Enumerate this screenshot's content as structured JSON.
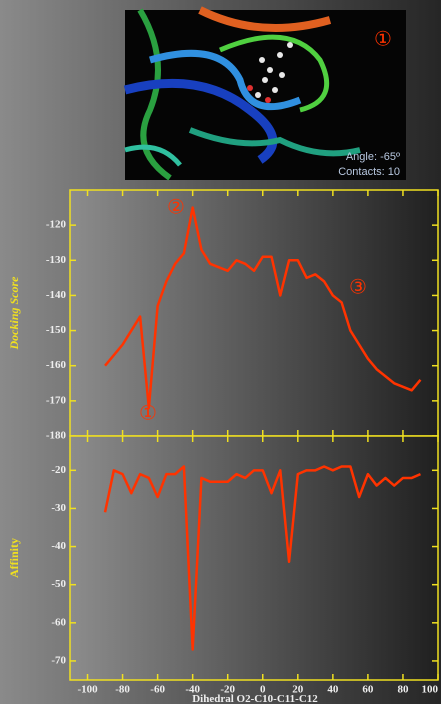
{
  "image": {
    "badge": "①",
    "angle_label": "Angle: -65º",
    "contacts_label": "Contacts: 10"
  },
  "chart_data": [
    {
      "type": "line",
      "y_label": "Docking Score",
      "x": [
        -90,
        -85,
        -80,
        -75,
        -70,
        -65,
        -60,
        -55,
        -50,
        -45,
        -40,
        -35,
        -30,
        -25,
        -20,
        -15,
        -10,
        -5,
        0,
        5,
        10,
        15,
        20,
        25,
        30,
        35,
        40,
        45,
        50,
        55,
        60,
        65,
        70,
        75,
        80,
        85,
        90
      ],
      "series": [
        {
          "color": "#ff3300",
          "values": [
            -160,
            -157,
            -154,
            -150,
            -146,
            -172,
            -143,
            -136,
            -131,
            -128,
            -115,
            -127,
            -131,
            -132,
            -133,
            -130,
            -131,
            -133,
            -129,
            -129,
            -140,
            -130,
            -130,
            -135,
            -134,
            -136,
            -140,
            -142,
            -150,
            -154,
            -158,
            -161,
            -163,
            -165,
            -166,
            -167,
            -164
          ]
        }
      ],
      "xlim": [
        -110,
        100
      ],
      "xticks": [
        -100,
        -80,
        -60,
        -40,
        -20,
        0,
        20,
        40,
        60,
        80,
        100
      ],
      "ylim": [
        -180,
        -110
      ],
      "yticks": [
        -180,
        -170,
        -160,
        -150,
        -140,
        -130,
        -120
      ],
      "annotations": [
        "①",
        "②",
        "③"
      ]
    },
    {
      "type": "line",
      "y_label": "Affinity",
      "x_label": "Dihedral O2-C10-C11-C12",
      "x": [
        -90,
        -85,
        -80,
        -75,
        -70,
        -65,
        -60,
        -55,
        -50,
        -45,
        -40,
        -35,
        -30,
        -25,
        -20,
        -15,
        -10,
        -5,
        0,
        5,
        10,
        15,
        20,
        25,
        30,
        35,
        40,
        45,
        50,
        55,
        60,
        65,
        70,
        75,
        80,
        85,
        90
      ],
      "series": [
        {
          "color": "#ff3300",
          "values": [
            -31,
            -20,
            -21,
            -26,
            -21,
            -22,
            -27,
            -21,
            -21,
            -19,
            -67,
            -22,
            -23,
            -23,
            -23,
            -21,
            -22,
            -20,
            -20,
            -26,
            -20,
            -44,
            -21,
            -20,
            -20,
            -19,
            -20,
            -19,
            -19,
            -27,
            -21,
            -24,
            -22,
            -24,
            -22,
            -22,
            -21
          ]
        }
      ],
      "xlim": [
        -110,
        100
      ],
      "xticks": [
        -100,
        -80,
        -60,
        -40,
        -20,
        0,
        20,
        40,
        60,
        80,
        100
      ],
      "ylim": [
        -75,
        -11
      ],
      "yticks": [
        -70,
        -60,
        -50,
        -40,
        -30,
        -20
      ]
    }
  ]
}
